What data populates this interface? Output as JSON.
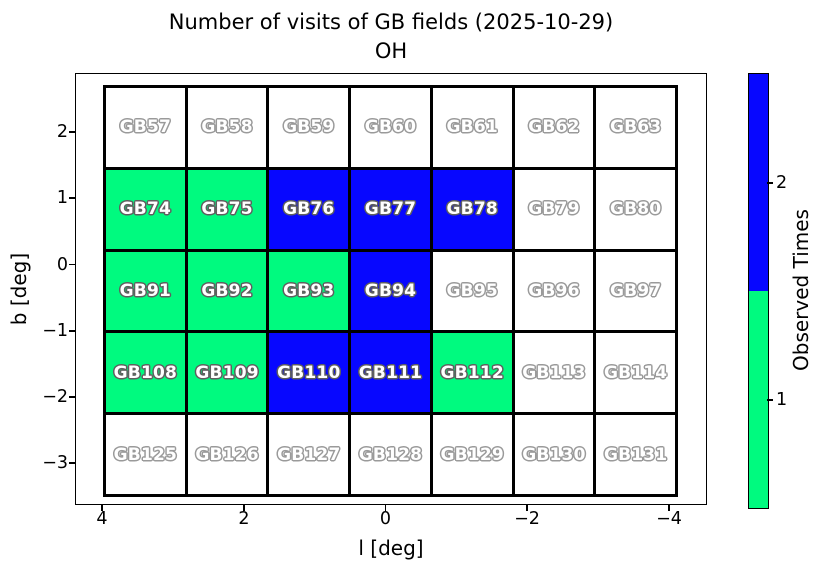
{
  "chart_data": {
    "type": "heatmap",
    "title": "Number of visits of GB fields (2025-10-29)",
    "subtitle": "OH",
    "xlabel": "l [deg]",
    "ylabel": "b [deg]",
    "x_tick_labels": [
      "4",
      "2",
      "0",
      "−2",
      "−4"
    ],
    "y_tick_labels": [
      "2",
      "1",
      "0",
      "−1",
      "−2",
      "−3"
    ],
    "x_axis_inverted": true,
    "grid_shape": {
      "rows": 5,
      "cols": 7
    },
    "colorbar": {
      "label": "Observed Times",
      "tick_labels": [
        "2",
        "1"
      ],
      "level_colors": {
        "0": "#ffffff",
        "1": "#00fa7f",
        "2": "#0707ff"
      }
    },
    "cells": [
      {
        "label": "GB57",
        "visits": 0
      },
      {
        "label": "GB58",
        "visits": 0
      },
      {
        "label": "GB59",
        "visits": 0
      },
      {
        "label": "GB60",
        "visits": 0
      },
      {
        "label": "GB61",
        "visits": 0
      },
      {
        "label": "GB62",
        "visits": 0
      },
      {
        "label": "GB63",
        "visits": 0
      },
      {
        "label": "GB74",
        "visits": 1
      },
      {
        "label": "GB75",
        "visits": 1
      },
      {
        "label": "GB76",
        "visits": 2
      },
      {
        "label": "GB77",
        "visits": 2
      },
      {
        "label": "GB78",
        "visits": 2
      },
      {
        "label": "GB79",
        "visits": 0
      },
      {
        "label": "GB80",
        "visits": 0
      },
      {
        "label": "GB91",
        "visits": 1
      },
      {
        "label": "GB92",
        "visits": 1
      },
      {
        "label": "GB93",
        "visits": 1
      },
      {
        "label": "GB94",
        "visits": 2
      },
      {
        "label": "GB95",
        "visits": 0
      },
      {
        "label": "GB96",
        "visits": 0
      },
      {
        "label": "GB97",
        "visits": 0
      },
      {
        "label": "GB108",
        "visits": 1
      },
      {
        "label": "GB109",
        "visits": 1
      },
      {
        "label": "GB110",
        "visits": 2
      },
      {
        "label": "GB111",
        "visits": 2
      },
      {
        "label": "GB112",
        "visits": 1
      },
      {
        "label": "GB113",
        "visits": 0
      },
      {
        "label": "GB114",
        "visits": 0
      },
      {
        "label": "GB125",
        "visits": 0
      },
      {
        "label": "GB126",
        "visits": 0
      },
      {
        "label": "GB127",
        "visits": 0
      },
      {
        "label": "GB128",
        "visits": 0
      },
      {
        "label": "GB129",
        "visits": 0
      },
      {
        "label": "GB130",
        "visits": 0
      },
      {
        "label": "GB131",
        "visits": 0
      }
    ]
  }
}
